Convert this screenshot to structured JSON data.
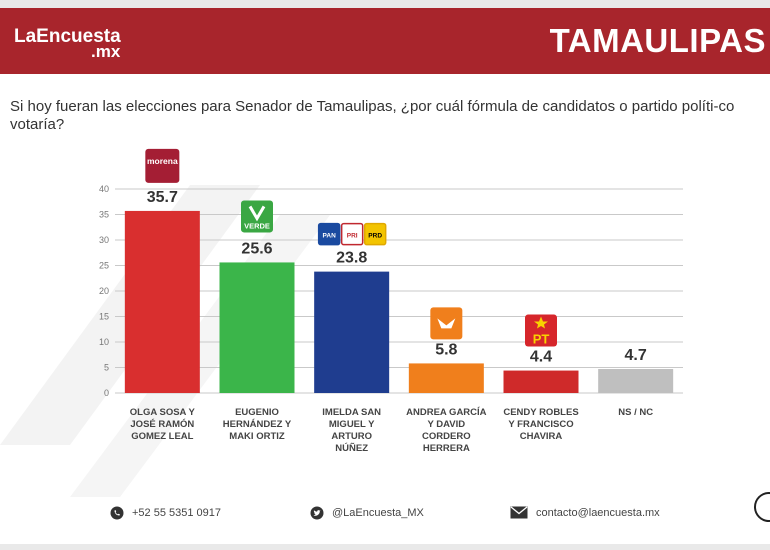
{
  "header": {
    "logo_line1": "LaEncuesta",
    "logo_line2": ".mx",
    "state": "TAMAULIPAS"
  },
  "question": "Si hoy fueran las elecciones para Senador de Tamaulipas, ¿por cuál fórmula de candidatos o partido políti-co votaría?",
  "chart_data": {
    "type": "bar",
    "title": "",
    "xlabel": "",
    "ylabel": "",
    "ylim": [
      0,
      40
    ],
    "yticks": [
      "0",
      "5",
      "10",
      "15",
      "20",
      "25",
      "30",
      "35",
      "40"
    ],
    "categories": [
      [
        "OLGA SOSA Y",
        "JOSÉ RAMÓN",
        "GOMEZ LEAL"
      ],
      [
        "EUGENIO",
        "HERNÁNDEZ Y",
        "MAKI ORTIZ"
      ],
      [
        "IMELDA SAN",
        "MIGUEL Y",
        "ARTURO",
        "NÚÑEZ"
      ],
      [
        "ANDREA GARCÍA",
        "Y DAVID",
        "CORDERO",
        "HERRERA"
      ],
      [
        "CENDY ROBLES",
        "Y FRANCISCO",
        "CHAVIRA"
      ],
      [
        "NS / NC"
      ]
    ],
    "values": [
      35.7,
      25.6,
      23.8,
      5.8,
      4.4,
      4.7
    ],
    "value_labels": [
      "35.7",
      "25.6",
      "23.8",
      "5.8",
      "4.4",
      "4.7"
    ],
    "colors": [
      "#d92f2f",
      "#3bb54a",
      "#1f3d8f",
      "#f07f1c",
      "#cf2a2a",
      "#bfbfbf"
    ],
    "party_badges": [
      "morena",
      "VERDE",
      "PAN PRI PRD",
      "MC",
      "PT",
      ""
    ]
  },
  "footer": {
    "phone": "+52 55 5351 0917",
    "twitter": "@LaEncuesta_MX",
    "email": "contacto@laencuesta.mx"
  }
}
